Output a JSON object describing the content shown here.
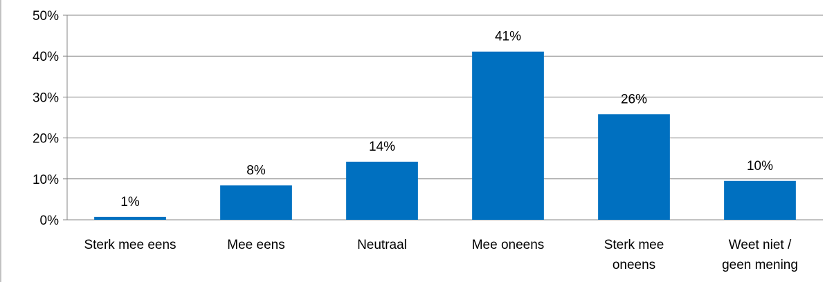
{
  "chart_data": {
    "type": "bar",
    "categories": [
      [
        "Sterk mee eens"
      ],
      [
        "Mee eens"
      ],
      [
        "Neutraal"
      ],
      [
        "Mee oneens"
      ],
      [
        "Sterk mee",
        "oneens"
      ],
      [
        "Weet niet /",
        "geen mening"
      ]
    ],
    "values": [
      0.7,
      8.4,
      14.2,
      41.1,
      25.8,
      9.5
    ],
    "data_labels": [
      "1%",
      "8%",
      "14%",
      "41%",
      "26%",
      "10%"
    ],
    "y_ticks": [
      "0%",
      "10%",
      "20%",
      "30%",
      "40%",
      "50%"
    ],
    "ylim": [
      0,
      50
    ],
    "grid": true,
    "bar_color": "#0070C0",
    "grid_color": "#868686",
    "axis_color": "#868686"
  }
}
